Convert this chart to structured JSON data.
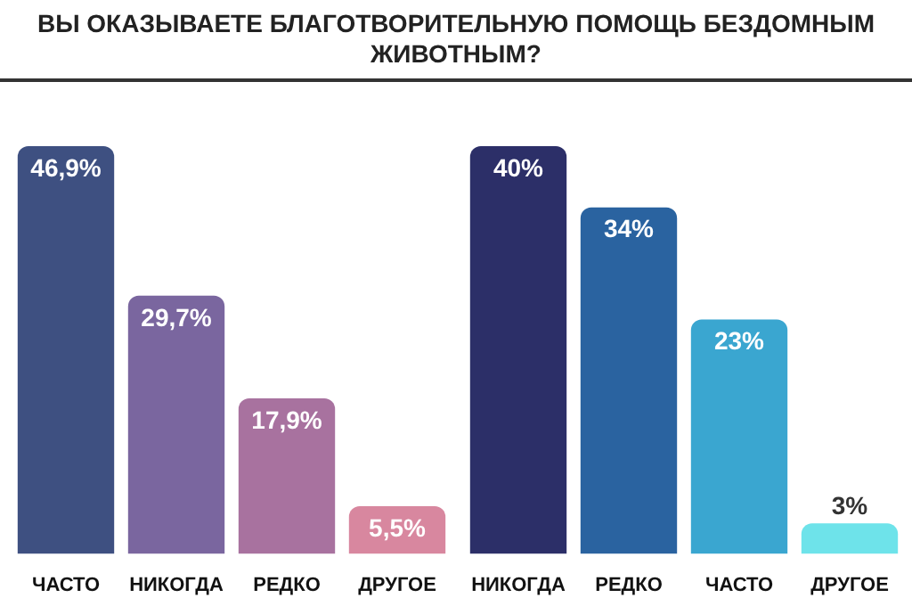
{
  "chart_data": [
    {
      "type": "bar",
      "title": "ВЫ ОКАЗЫВАЕТЕ БЛАГОТВОРИТЕЛЬНУЮ ПОМОЩЬ БЕЗДОМНЫМ ЖИВОТНЫМ?",
      "categories": [
        "ЧАСТО",
        "НИКОГДА",
        "РЕДКО",
        "ДРУГОЕ"
      ],
      "values": [
        46.9,
        29.7,
        17.9,
        5.5
      ],
      "colors": [
        "#3e5081",
        "#7a669f",
        "#a8729f",
        "#d8879f"
      ],
      "value_labels": [
        "46,9%",
        "29,7%",
        "17,9%",
        "5,5%"
      ]
    },
    {
      "type": "bar",
      "categories": [
        "НИКОГДА",
        "РЕДКО",
        "ЧАСТО",
        "ДРУГОЕ"
      ],
      "values": [
        40,
        34,
        23,
        3
      ],
      "colors": [
        "#2c2f68",
        "#2a63a0",
        "#3aa6d0",
        "#6ee3ea"
      ],
      "value_labels": [
        "40%",
        "34%",
        "23%",
        "3%"
      ]
    }
  ]
}
